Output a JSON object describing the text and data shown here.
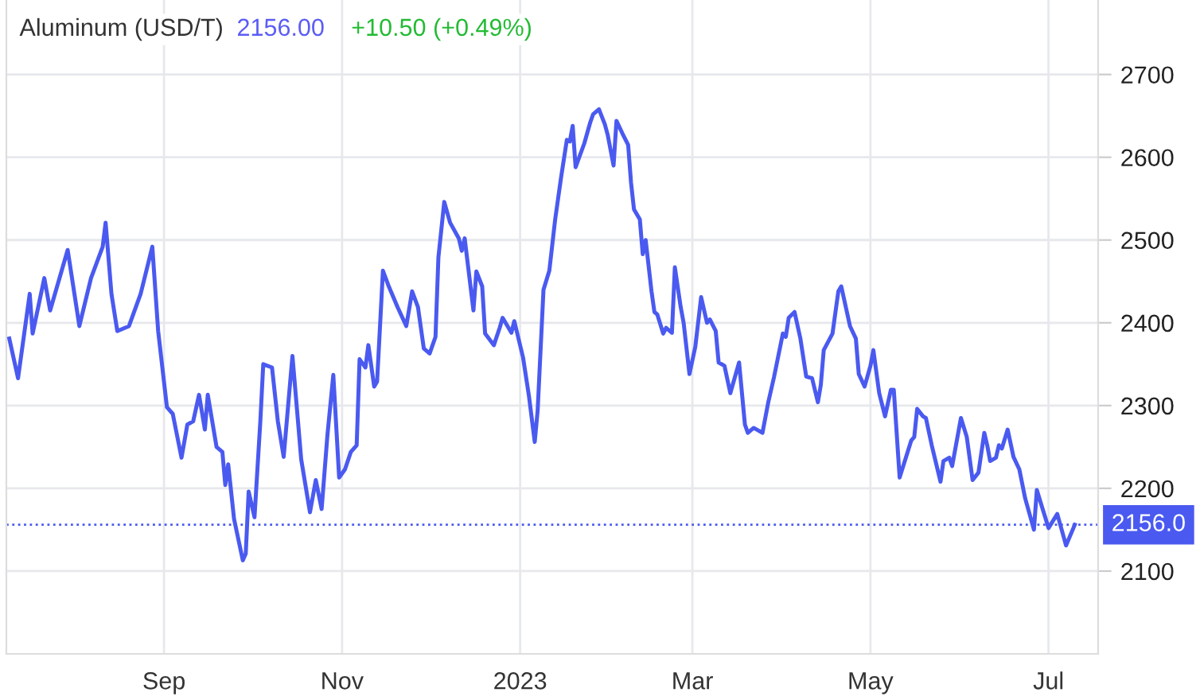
{
  "chart_data": {
    "type": "line",
    "title": "Aluminum (USD/T)",
    "annotations": [
      "2156.00",
      "+10.50 (+0.49%)"
    ],
    "x": [
      "2022-07-10",
      "2022-07-13",
      "2022-07-17",
      "2022-07-18",
      "2022-07-22",
      "2022-07-24",
      "2022-07-30",
      "2022-08-03",
      "2022-08-07",
      "2022-08-11",
      "2022-08-12",
      "2022-08-14",
      "2022-08-16",
      "2022-08-20",
      "2022-08-24",
      "2022-08-28",
      "2022-08-30",
      "2022-09-02",
      "2022-09-04",
      "2022-09-07",
      "2022-09-09",
      "2022-09-11",
      "2022-09-13",
      "2022-09-15",
      "2022-09-16",
      "2022-09-19",
      "2022-09-21",
      "2022-09-22",
      "2022-09-23",
      "2022-09-25",
      "2022-09-28",
      "2022-09-29",
      "2022-09-30",
      "2022-10-02",
      "2022-10-04",
      "2022-10-05",
      "2022-10-08",
      "2022-10-10",
      "2022-10-12",
      "2022-10-15",
      "2022-10-18",
      "2022-10-21",
      "2022-10-23",
      "2022-10-25",
      "2022-10-27",
      "2022-10-29",
      "2022-10-31",
      "2022-11-02",
      "2022-11-04",
      "2022-11-06",
      "2022-11-07",
      "2022-11-09",
      "2022-11-10",
      "2022-11-12",
      "2022-11-13",
      "2022-11-15",
      "2022-11-17",
      "2022-11-20",
      "2022-11-23",
      "2022-11-25",
      "2022-11-27",
      "2022-11-29",
      "2022-12-01",
      "2022-12-03",
      "2022-12-04",
      "2022-12-06",
      "2022-12-08",
      "2022-12-11",
      "2022-12-12",
      "2022-12-13",
      "2022-12-16",
      "2022-12-17",
      "2022-12-19",
      "2022-12-20",
      "2022-12-23",
      "2022-12-25",
      "2022-12-26",
      "2022-12-29",
      "2022-12-30",
      "2023-01-02",
      "2023-01-04",
      "2023-01-06",
      "2023-01-07",
      "2023-01-09",
      "2023-01-11",
      "2023-01-13",
      "2023-01-15",
      "2023-01-17",
      "2023-01-18",
      "2023-01-19",
      "2023-01-20",
      "2023-01-23",
      "2023-01-25",
      "2023-01-26",
      "2023-01-28",
      "2023-01-30",
      "2023-01-31",
      "2023-02-02",
      "2023-02-03",
      "2023-02-05",
      "2023-02-07",
      "2023-02-08",
      "2023-02-09",
      "2023-02-11",
      "2023-02-12",
      "2023-02-13",
      "2023-02-15",
      "2023-02-16",
      "2023-02-17",
      "2023-02-19",
      "2023-02-20",
      "2023-02-22",
      "2023-02-23",
      "2023-02-25",
      "2023-02-26",
      "2023-02-28",
      "2023-03-02",
      "2023-03-04",
      "2023-03-06",
      "2023-03-07",
      "2023-03-09",
      "2023-03-10",
      "2023-03-12",
      "2023-03-14",
      "2023-03-17",
      "2023-03-19",
      "2023-03-20",
      "2023-03-22",
      "2023-03-25",
      "2023-03-27",
      "2023-03-29",
      "2023-04-01",
      "2023-04-02",
      "2023-04-03",
      "2023-04-05",
      "2023-04-07",
      "2023-04-09",
      "2023-04-11",
      "2023-04-13",
      "2023-04-14",
      "2023-04-15",
      "2023-04-18",
      "2023-04-20",
      "2023-04-21",
      "2023-04-24",
      "2023-04-26",
      "2023-04-27",
      "2023-04-29",
      "2023-05-01",
      "2023-05-02",
      "2023-05-04",
      "2023-05-06",
      "2023-05-08",
      "2023-05-09",
      "2023-05-11",
      "2023-05-15",
      "2023-05-16",
      "2023-05-17",
      "2023-05-19",
      "2023-05-20",
      "2023-05-22",
      "2023-05-25",
      "2023-05-26",
      "2023-05-28",
      "2023-05-29",
      "2023-06-01",
      "2023-06-03",
      "2023-06-05",
      "2023-06-07",
      "2023-06-09",
      "2023-06-10",
      "2023-06-11",
      "2023-06-13",
      "2023-06-14",
      "2023-06-15",
      "2023-06-17",
      "2023-06-19",
      "2023-06-21",
      "2023-06-23",
      "2023-06-26",
      "2023-06-27",
      "2023-06-29",
      "2023-07-01",
      "2023-07-04",
      "2023-07-07",
      "2023-07-10"
    ],
    "series": [
      {
        "color": "#4a5af0",
        "values": [
          2381,
          2333,
          2435,
          2387,
          2454,
          2415,
          2488,
          2396,
          2454,
          2492,
          2521,
          2435,
          2390,
          2396,
          2435,
          2492,
          2390,
          2298,
          2290,
          2237,
          2277,
          2281,
          2313,
          2271,
          2313,
          2250,
          2244,
          2204,
          2229,
          2163,
          2113,
          2121,
          2196,
          2165,
          2281,
          2350,
          2346,
          2281,
          2238,
          2360,
          2235,
          2171,
          2210,
          2175,
          2265,
          2337,
          2213,
          2223,
          2244,
          2252,
          2356,
          2346,
          2373,
          2323,
          2329,
          2463,
          2444,
          2419,
          2396,
          2438,
          2419,
          2369,
          2363,
          2383,
          2479,
          2546,
          2521,
          2502,
          2487,
          2502,
          2415,
          2462,
          2444,
          2387,
          2373,
          2394,
          2406,
          2388,
          2402,
          2358,
          2312,
          2256,
          2294,
          2440,
          2463,
          2525,
          2575,
          2621,
          2619,
          2638,
          2588,
          2617,
          2642,
          2652,
          2658,
          2640,
          2627,
          2590,
          2644,
          2629,
          2615,
          2569,
          2537,
          2525,
          2483,
          2500,
          2438,
          2413,
          2410,
          2387,
          2394,
          2388,
          2467,
          2419,
          2400,
          2338,
          2371,
          2431,
          2400,
          2404,
          2390,
          2352,
          2348,
          2315,
          2352,
          2277,
          2267,
          2273,
          2267,
          2304,
          2335,
          2387,
          2383,
          2406,
          2413,
          2381,
          2335,
          2333,
          2304,
          2325,
          2367,
          2387,
          2438,
          2444,
          2396,
          2381,
          2338,
          2323,
          2348,
          2367,
          2315,
          2287,
          2319,
          2319,
          2213,
          2258,
          2262,
          2296,
          2287,
          2285,
          2252,
          2208,
          2233,
          2237,
          2227,
          2285,
          2262,
          2210,
          2219,
          2267,
          2252,
          2233,
          2237,
          2252,
          2248,
          2271,
          2238,
          2223,
          2188,
          2150,
          2198,
          2175,
          2152,
          2169,
          2131,
          2156
        ]
      }
    ],
    "xlim": [
      "2022-07-09",
      "2023-07-18"
    ],
    "xticks": [
      {
        "value": "2022-09-01",
        "label": "Sep"
      },
      {
        "value": "2022-11-01",
        "label": "Nov"
      },
      {
        "value": "2023-01-01",
        "label": "2023"
      },
      {
        "value": "2023-03-01",
        "label": "Mar"
      },
      {
        "value": "2023-05-01",
        "label": "May"
      },
      {
        "value": "2023-07-01",
        "label": "Jul"
      }
    ],
    "ylim": [
      2000,
      2790
    ],
    "yticks": [
      2100,
      2200,
      2300,
      2400,
      2500,
      2600,
      2700
    ],
    "ref_lines": [
      {
        "axis": "y",
        "value": 2156,
        "label": "2156.0",
        "color": "#4a5af0",
        "line_style": "dotted"
      }
    ],
    "grid": true,
    "legend": false,
    "marker": "none",
    "line_style": "solid"
  }
}
